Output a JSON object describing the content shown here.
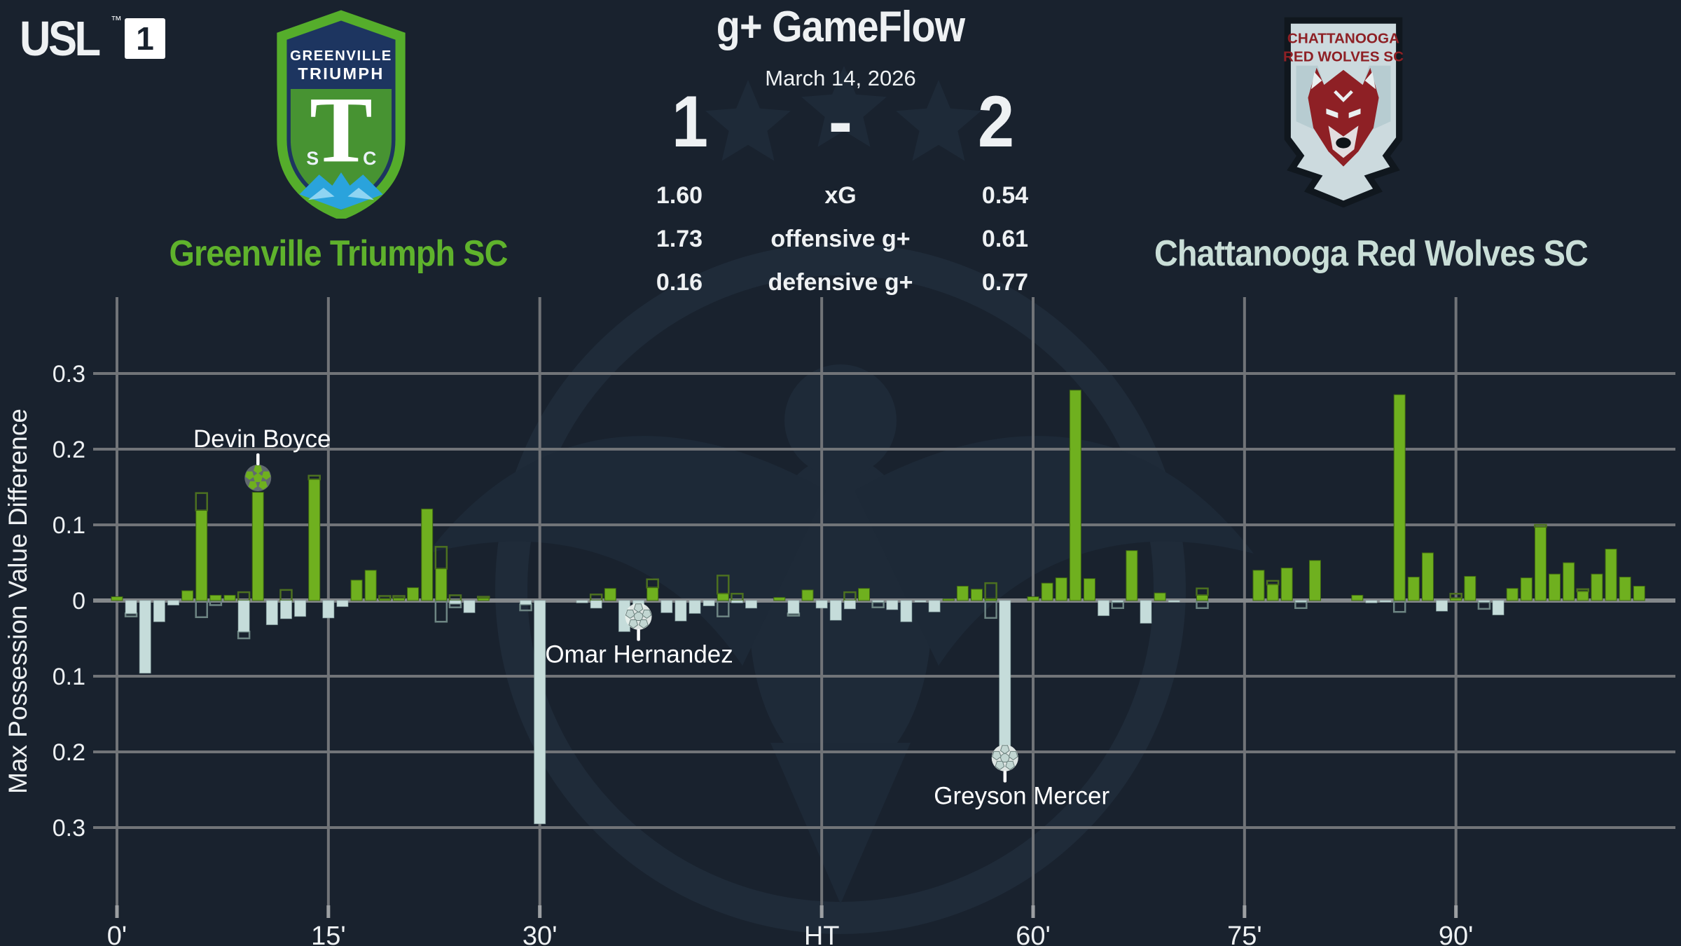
{
  "league": {
    "abbr": "USL",
    "tm": "™",
    "tier": "1"
  },
  "header": {
    "title": "g+ GameFlow",
    "date": "March 14, 2026",
    "separator": "-"
  },
  "teams": {
    "home": {
      "name": "Greenville Triumph SC",
      "score": "1",
      "text_color": "#5fb22c",
      "crest": {
        "line1": "GREENVILLE",
        "line2": "TRIUMPH",
        "monogram": "T",
        "flank_left": "S",
        "flank_right": "C"
      }
    },
    "away": {
      "name": "Chattanooga Red Wolves SC",
      "score": "2",
      "text_color": "#c9ded7",
      "crest": {
        "line1": "CHATTANOOGA",
        "line2": "RED WOLVES SC"
      }
    }
  },
  "stats": [
    {
      "home": "1.60",
      "label": "xG",
      "away": "0.54"
    },
    {
      "home": "1.73",
      "label": "offensive g+",
      "away": "0.61"
    },
    {
      "home": "0.16",
      "label": "defensive g+",
      "away": "0.77"
    }
  ],
  "chart_data": {
    "type": "bar",
    "ylabel": "Max Possession Value Difference",
    "ylim": [
      -0.35,
      0.35
    ],
    "grid": true,
    "yticks": [
      {
        "v": 0.3,
        "label": "0.3"
      },
      {
        "v": 0.2,
        "label": "0.2"
      },
      {
        "v": 0.1,
        "label": "0.1"
      },
      {
        "v": 0,
        "label": "0"
      },
      {
        "v": -0.1,
        "label": "0.1"
      },
      {
        "v": -0.2,
        "label": "0.2"
      },
      {
        "v": -0.3,
        "label": "0.3"
      }
    ],
    "xticks": [
      {
        "i": 0,
        "label": "0'"
      },
      {
        "i": 15,
        "label": "15'"
      },
      {
        "i": 30,
        "label": "30'"
      },
      {
        "i": 50,
        "label": "HT"
      },
      {
        "i": 65,
        "label": "60'"
      },
      {
        "i": 80,
        "label": "75'"
      },
      {
        "i": 95,
        "label": "90'"
      }
    ],
    "colors": {
      "home_bar": "#6fb01f",
      "home_bar_edge": "#3f6712",
      "away_bar": "#c5dcda",
      "away_bar_edge": "#8fabaa",
      "pos_outline": "#4c7020",
      "neg_outline": "#6d8583",
      "grid": "#717478",
      "zero_line": "#84888b",
      "text": "#eef1f3",
      "background": "#19222e"
    },
    "series": [
      {
        "name": "Greenville Triumph SC",
        "direction": "positive",
        "color": "#6fb01f"
      },
      {
        "name": "Chattanooga Red Wolves SC",
        "direction": "negative",
        "color": "#c5dcda"
      }
    ],
    "bars": [
      {
        "v": 0.005
      },
      {
        "v": -0.017,
        "ob": -0.021
      },
      {
        "v": -0.096
      },
      {
        "v": -0.028
      },
      {
        "v": -0.006
      },
      {
        "v": 0.013
      },
      {
        "v": 0.119,
        "ot": 0.142,
        "ob": -0.022
      },
      {
        "v": 0.007,
        "ob": -0.006
      },
      {
        "v": 0.007
      },
      {
        "v": -0.041,
        "ot": 0.011,
        "ob": -0.05
      },
      {
        "v": 0.143
      },
      {
        "v": -0.032
      },
      {
        "v": -0.024,
        "ot": 0.014
      },
      {
        "v": -0.021
      },
      {
        "v": 0.16,
        "ot": 0.165
      },
      {
        "v": -0.023
      },
      {
        "v": -0.008
      },
      {
        "v": 0.027
      },
      {
        "v": 0.04
      },
      {
        "v": 0.002,
        "ot": 0.006
      },
      {
        "v": 0.003,
        "ot": 0.006
      },
      {
        "v": 0.017
      },
      {
        "v": 0.121
      },
      {
        "v": 0.042,
        "ot": 0.071,
        "ob": -0.028
      },
      {
        "v": -0.004,
        "ot": 0.007,
        "ob": -0.009
      },
      {
        "v": -0.016
      },
      {
        "v": 0.003,
        "ot": 0.005
      },
      {
        "v": 0
      },
      {
        "v": 0
      },
      {
        "v": -0.005,
        "ob": -0.013
      },
      {
        "v": -0.295
      },
      {
        "v": 0
      },
      {
        "v": 0
      },
      {
        "v": -0.003
      },
      {
        "v": -0.01,
        "ot": 0.008
      },
      {
        "v": 0.016
      },
      {
        "v": -0.041
      },
      {
        "v": -0.01
      },
      {
        "v": 0.017,
        "ot": 0.028
      },
      {
        "v": -0.016
      },
      {
        "v": -0.027
      },
      {
        "v": -0.017
      },
      {
        "v": -0.007
      },
      {
        "v": 0.009,
        "ot": 0.033,
        "ob": -0.021
      },
      {
        "v": -0.003,
        "ot": 0.009
      },
      {
        "v": -0.01
      },
      {
        "v": 0
      },
      {
        "v": 0.004
      },
      {
        "v": -0.017,
        "ob": -0.02
      },
      {
        "v": 0.014
      },
      {
        "v": -0.01
      },
      {
        "v": -0.026
      },
      {
        "v": -0.011,
        "ot": 0.011
      },
      {
        "v": 0.016
      },
      {
        "v": -0.002,
        "ob": -0.009
      },
      {
        "v": -0.012
      },
      {
        "v": -0.028
      },
      {
        "v": -0.002
      },
      {
        "v": -0.015
      },
      {
        "v": 0.002
      },
      {
        "v": 0.019
      },
      {
        "v": 0.015
      },
      {
        "v": 0.002,
        "ot": 0.023,
        "ob": -0.023
      },
      {
        "v": -0.192
      },
      {
        "v": 0
      },
      {
        "v": 0.005
      },
      {
        "v": 0.023
      },
      {
        "v": 0.03
      },
      {
        "v": 0.278
      },
      {
        "v": 0.029
      },
      {
        "v": -0.02
      },
      {
        "v": -0.002,
        "ob": -0.01
      },
      {
        "v": 0.066
      },
      {
        "v": -0.03
      },
      {
        "v": 0.01
      },
      {
        "v": -0.002
      },
      {
        "v": 0
      },
      {
        "v": 0.007,
        "ot": 0.016,
        "ob": -0.01
      },
      {
        "v": 0
      },
      {
        "v": 0
      },
      {
        "v": 0
      },
      {
        "v": 0.04
      },
      {
        "v": 0.021,
        "ot": 0.026
      },
      {
        "v": 0.043
      },
      {
        "v": -0.002,
        "ob": -0.01
      },
      {
        "v": 0.053
      },
      {
        "v": 0
      },
      {
        "v": 0
      },
      {
        "v": 0.007
      },
      {
        "v": -0.003
      },
      {
        "v": -0.002
      },
      {
        "v": 0.272,
        "ob": -0.015
      },
      {
        "v": 0.031
      },
      {
        "v": 0.063
      },
      {
        "v": -0.014
      },
      {
        "v": 0.003,
        "ot": 0.009
      },
      {
        "v": 0.032
      },
      {
        "v": -0.002,
        "ob": -0.011
      },
      {
        "v": -0.019
      },
      {
        "v": 0.016
      },
      {
        "v": 0.03
      },
      {
        "v": 0.097,
        "ot": 0.1
      },
      {
        "v": 0.035
      },
      {
        "v": 0.05
      },
      {
        "v": 0.012,
        "ot": 0.015
      },
      {
        "v": 0.035
      },
      {
        "v": 0.068
      },
      {
        "v": 0.031
      },
      {
        "v": 0.019
      }
    ],
    "goals": [
      {
        "player": "Devin Boyce",
        "i": 10,
        "team": "home",
        "side": "above",
        "ball_v": 0.162,
        "dx": 6
      },
      {
        "player": "Omar Hernandez",
        "i": 37,
        "team": "away",
        "side": "below",
        "ball_v": -0.021,
        "dx": 1
      },
      {
        "player": "Greyson Mercer",
        "i": 63,
        "team": "away",
        "side": "below",
        "ball_v": -0.208,
        "dx": 24
      }
    ]
  }
}
